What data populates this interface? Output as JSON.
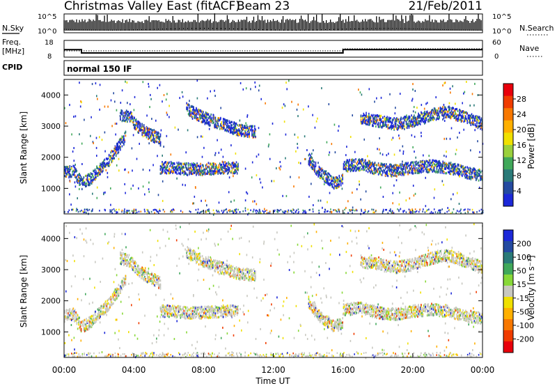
{
  "header": {
    "title": "Christmas Valley East (fitACF)",
    "beam": "Beam 23",
    "date": "21/Feb/2011"
  },
  "left_labels": {
    "nsky": "N.Sky",
    "freq": "Freq.",
    "freq_unit": "[MHz]",
    "cpid": "CPID"
  },
  "right_labels": {
    "nsearch": "N.Search",
    "nave": "Nave"
  },
  "cpid_text": "normal 150 IF",
  "axis": {
    "xlabel": "Time UT",
    "ylabel": "Slant Range [km]",
    "x_ticks": [
      "00:00",
      "04:00",
      "08:00",
      "12:00",
      "16:00",
      "20:00",
      "00:00"
    ],
    "y_ticks": [
      "1000",
      "2000",
      "3000",
      "4000"
    ],
    "noise_left_ticks": [
      "10^5",
      "10^0"
    ],
    "noise_right_ticks": [
      "10^5",
      "10^0"
    ],
    "freq_left_ticks": [
      "18",
      "8"
    ],
    "freq_right_ticks": [
      "60",
      "0"
    ]
  },
  "power_bar": {
    "label": "Power [dB]",
    "ticks": [
      "28",
      "24",
      "20",
      "16",
      "12",
      "8",
      "4"
    ],
    "colors": [
      "#e8000b",
      "#f03c00",
      "#f87800",
      "#ffb000",
      "#f0e000",
      "#9ad03c",
      "#40a85a",
      "#2a7a78",
      "#244aa0",
      "#1c28d8"
    ]
  },
  "velocity_bar": {
    "label": "Velocity [m s⁻¹]",
    "ticks": [
      "200",
      "100",
      "50",
      "15",
      "-15",
      "-50",
      "-100",
      "-200"
    ],
    "colors": [
      "#1c28d8",
      "#244aa0",
      "#2a7a78",
      "#40a85a",
      "#88d838",
      "#c8c8c0",
      "#f0e000",
      "#ffb000",
      "#f87800",
      "#f03c00",
      "#e8000b"
    ]
  },
  "chart_data": [
    {
      "type": "line",
      "name": "noise",
      "xlim": [
        0,
        24
      ],
      "x_unit": "hours UT"
    },
    {
      "type": "line",
      "name": "frequency",
      "xlim": [
        0,
        24
      ],
      "series": [
        {
          "name": "Freq.",
          "x": [
            0,
            1,
            1,
            16,
            16,
            24
          ],
          "y": [
            12.5,
            12.5,
            10.5,
            10.5,
            12.5,
            12.5
          ]
        }
      ]
    },
    {
      "type": "heatmap",
      "name": "power",
      "xlim": [
        0,
        24
      ],
      "ylim": [
        180,
        4500
      ],
      "colorbar_range": [
        0,
        30
      ],
      "echo_bands": [
        {
          "x": [
            0,
            0.5,
            1,
            1.5,
            2,
            2.5,
            3,
            3.5
          ],
          "y": [
            1550,
            1600,
            1200,
            1350,
            1650,
            1900,
            2300,
            2700
          ]
        },
        {
          "x": [
            3.2,
            3.8,
            4.2,
            4.8,
            5.5
          ],
          "y": [
            3400,
            3300,
            3000,
            2800,
            2600
          ]
        },
        {
          "x": [
            5.5,
            6,
            7,
            8,
            9,
            10
          ],
          "y": [
            1700,
            1700,
            1650,
            1650,
            1700,
            1700
          ]
        },
        {
          "x": [
            7,
            8,
            9,
            10,
            11
          ],
          "y": [
            3600,
            3300,
            3100,
            2900,
            2850
          ]
        },
        {
          "x": [
            14,
            14.5,
            15,
            15.5,
            16
          ],
          "y": [
            2000,
            1600,
            1400,
            1200,
            1350
          ]
        },
        {
          "x": [
            16,
            17,
            18,
            19,
            20,
            21,
            22,
            23,
            24
          ],
          "y": [
            1750,
            1800,
            1650,
            1600,
            1700,
            1750,
            1700,
            1550,
            1450
          ]
        },
        {
          "x": [
            17,
            18,
            19,
            20,
            21,
            22,
            23,
            24
          ],
          "y": [
            3300,
            3200,
            3100,
            3200,
            3400,
            3500,
            3300,
            3100
          ]
        }
      ]
    },
    {
      "type": "heatmap",
      "name": "velocity",
      "xlim": [
        0,
        24
      ],
      "ylim": [
        180,
        4500
      ],
      "colorbar_range": [
        -250,
        250
      ],
      "echo_bands": [
        {
          "x": [
            0,
            0.5,
            1,
            1.5,
            2,
            2.5,
            3,
            3.5
          ],
          "y": [
            1550,
            1600,
            1200,
            1350,
            1650,
            1900,
            2300,
            2700
          ]
        },
        {
          "x": [
            3.2,
            3.8,
            4.2,
            4.8,
            5.5
          ],
          "y": [
            3400,
            3300,
            3000,
            2800,
            2600
          ]
        },
        {
          "x": [
            5.5,
            6,
            7,
            8,
            9,
            10
          ],
          "y": [
            1700,
            1700,
            1650,
            1650,
            1700,
            1700
          ]
        },
        {
          "x": [
            7,
            8,
            9,
            10,
            11
          ],
          "y": [
            3600,
            3300,
            3100,
            2900,
            2850
          ]
        },
        {
          "x": [
            14,
            14.5,
            15,
            15.5,
            16
          ],
          "y": [
            2000,
            1600,
            1400,
            1200,
            1350
          ]
        },
        {
          "x": [
            16,
            17,
            18,
            19,
            20,
            21,
            22,
            23,
            24
          ],
          "y": [
            1750,
            1800,
            1650,
            1600,
            1700,
            1750,
            1700,
            1550,
            1450
          ]
        },
        {
          "x": [
            17,
            18,
            19,
            20,
            21,
            22,
            23,
            24
          ],
          "y": [
            3300,
            3200,
            3100,
            3200,
            3400,
            3500,
            3300,
            3100
          ]
        }
      ]
    }
  ]
}
